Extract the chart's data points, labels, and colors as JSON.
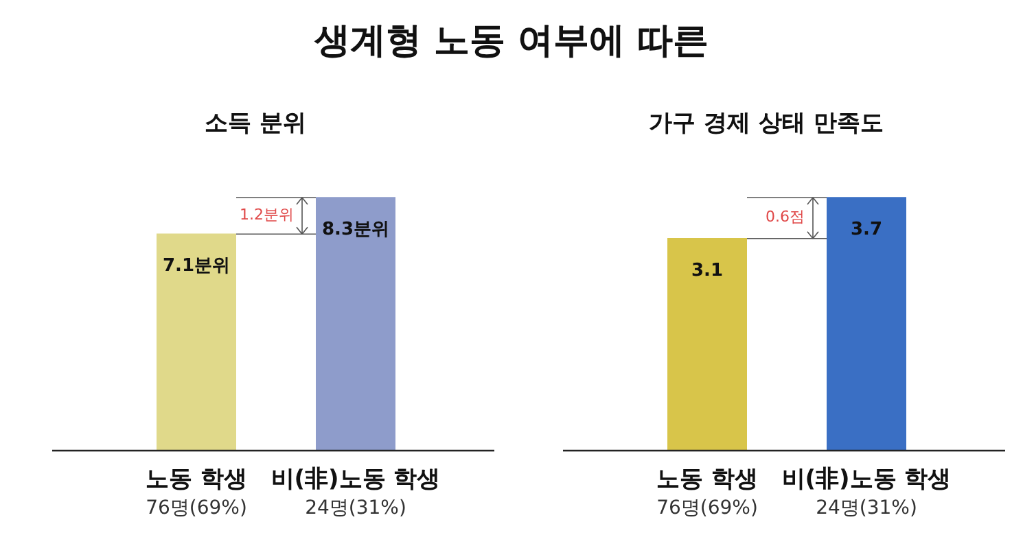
{
  "chart_data": [
    {
      "type": "bar",
      "title": "생계형 노동 여부에 따른",
      "subtitle": "소득 분위",
      "categories": [
        "노동 학생\n76명(69%)",
        "비(非)노동 학생\n24명(31%)"
      ],
      "values": [
        7.1,
        8.3
      ],
      "colors": [
        "#e0d98a",
        "#8e9ccb"
      ],
      "value_labels": [
        "7.1분위",
        "8.3분위"
      ],
      "annotations": [
        "1.2분위"
      ]
    },
    {
      "type": "bar",
      "subtitle": "가구 경제 상태 만족도",
      "categories": [
        "노동 학생\n76명(69%)",
        "비(非)노동 학생\n24명(31%)"
      ],
      "values": [
        3.1,
        3.7
      ],
      "colors": [
        "#d8c54a",
        "#3a6fc4"
      ],
      "data_labels": true,
      "annotations": [
        "0.6점"
      ]
    }
  ]
}
